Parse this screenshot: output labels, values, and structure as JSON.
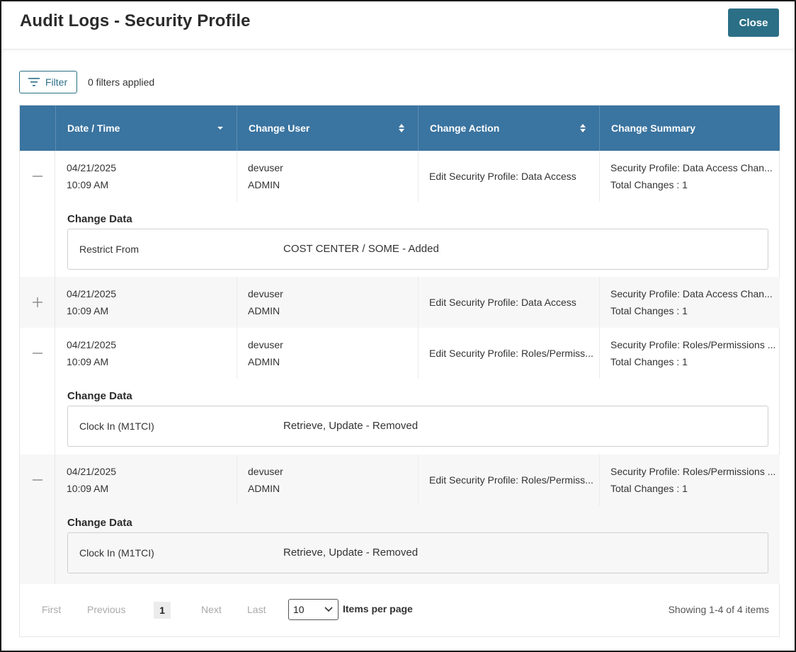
{
  "dialog": {
    "title": "Audit Logs - Security Profile",
    "close_label": "Close"
  },
  "toolbar": {
    "filter_label": "Filter",
    "filters_applied": "0 filters applied"
  },
  "columns": [
    {
      "label": "Date / Time",
      "sort": "chevron-down-icon"
    },
    {
      "label": "Change User",
      "sort": "sort-icon"
    },
    {
      "label": "Change Action",
      "sort": "sort-icon"
    },
    {
      "label": "Change Summary",
      "sort": ""
    }
  ],
  "rows": [
    {
      "expanded": true,
      "date": "04/21/2025",
      "time": "10:09 AM",
      "user": "devuser",
      "role": "ADMIN",
      "action": "Edit Security Profile: Data Access",
      "summary": "Security Profile: Data Access Chan...",
      "changes": "Total Changes : 1",
      "change_data_title": "Change Data",
      "change_key": "Restrict From",
      "change_value": "COST CENTER / SOME - Added"
    },
    {
      "expanded": false,
      "date": "04/21/2025",
      "time": "10:09 AM",
      "user": "devuser",
      "role": "ADMIN",
      "action": "Edit Security Profile: Data Access",
      "summary": "Security Profile: Data Access Chan...",
      "changes": "Total Changes : 1"
    },
    {
      "expanded": true,
      "date": "04/21/2025",
      "time": "10:09 AM",
      "user": "devuser",
      "role": "ADMIN",
      "action": "Edit Security Profile: Roles/Permiss...",
      "summary": "Security Profile: Roles/Permissions ...",
      "changes": "Total Changes : 1",
      "change_data_title": "Change Data",
      "change_key": "Clock In (M1TCI)",
      "change_value": "Retrieve, Update - Removed"
    },
    {
      "expanded": true,
      "date": "04/21/2025",
      "time": "10:09 AM",
      "user": "devuser",
      "role": "ADMIN",
      "action": "Edit Security Profile: Roles/Permiss...",
      "summary": "Security Profile: Roles/Permissions ...",
      "changes": "Total Changes : 1",
      "change_data_title": "Change Data",
      "change_key": "Clock In (M1TCI)",
      "change_value": "Retrieve, Update - Removed"
    }
  ],
  "pager": {
    "first": "First",
    "previous": "Previous",
    "current_page": "1",
    "next": "Next",
    "last": "Last",
    "page_size": "10",
    "items_per_page": "Items per page",
    "showing": "Showing 1-4 of 4 items"
  },
  "colors": {
    "header_bg": "#3a74a0",
    "accent": "#2b6f86",
    "alt_row": "#f7f7f7"
  }
}
